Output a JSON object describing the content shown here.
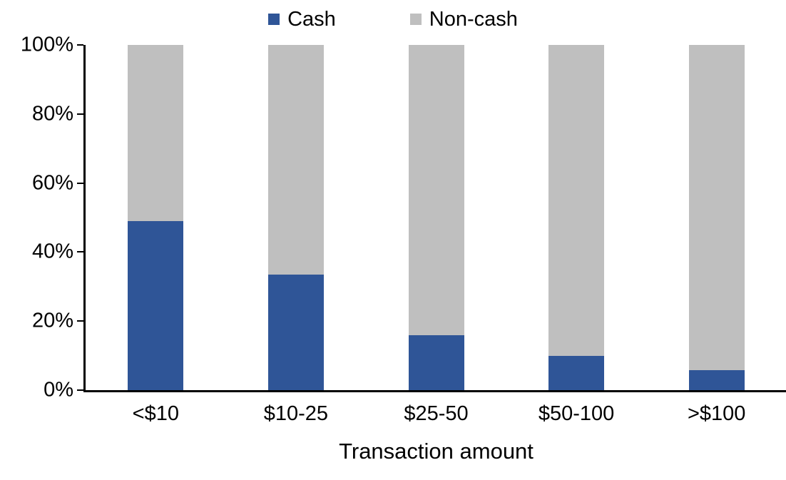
{
  "chart_data": {
    "type": "bar",
    "subtype": "100-percent-stacked-column",
    "categories": [
      "<$10",
      "$10-25",
      "$25-50",
      "$50-100",
      ">$100"
    ],
    "series": [
      {
        "name": "Cash",
        "color": "#2F5597",
        "values": [
          49,
          33.5,
          16,
          10,
          5.8
        ]
      },
      {
        "name": "Non-cash",
        "color": "#BFBFBF",
        "values": [
          51,
          66.5,
          84,
          90,
          94.2
        ]
      }
    ],
    "title": "",
    "xlabel": "Transaction amount",
    "ylabel": "",
    "ylim": [
      0,
      100
    ],
    "yticks": [
      "0%",
      "20%",
      "40%",
      "60%",
      "80%",
      "100%"
    ],
    "ytick_values": [
      0,
      20,
      40,
      60,
      80,
      100
    ],
    "legend_position": "top-center",
    "grid": false,
    "axis_color": "#000000",
    "background_color": "#FFFFFF"
  }
}
